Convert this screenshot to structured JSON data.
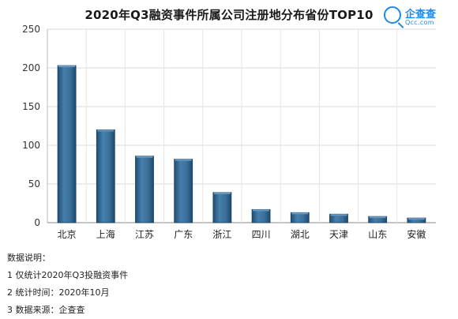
{
  "chart_data": {
    "type": "bar",
    "title": "2020年Q3融资事件所属公司注册地分布省份TOP10",
    "categories": [
      "北京",
      "上海",
      "江苏",
      "广东",
      "浙江",
      "四川",
      "湖北",
      "天津",
      "山东",
      "安徽"
    ],
    "values": [
      203,
      120,
      86,
      82,
      39,
      17,
      13,
      11,
      8,
      6
    ],
    "yticks": [
      "0",
      "50",
      "100",
      "150",
      "200",
      "250"
    ],
    "ylim": [
      0,
      250
    ],
    "xlabel": "",
    "ylabel": "",
    "grid": true,
    "bar_color": "#3a6f9a"
  },
  "logo": {
    "brand": "企查查",
    "domain": "Qcc.com"
  },
  "notes": {
    "heading": "数据说明：",
    "lines": [
      "1 仅统计2020年Q3投融资事件",
      "2 统计时间：2020年10月",
      "3 数据来源：企查查"
    ]
  }
}
